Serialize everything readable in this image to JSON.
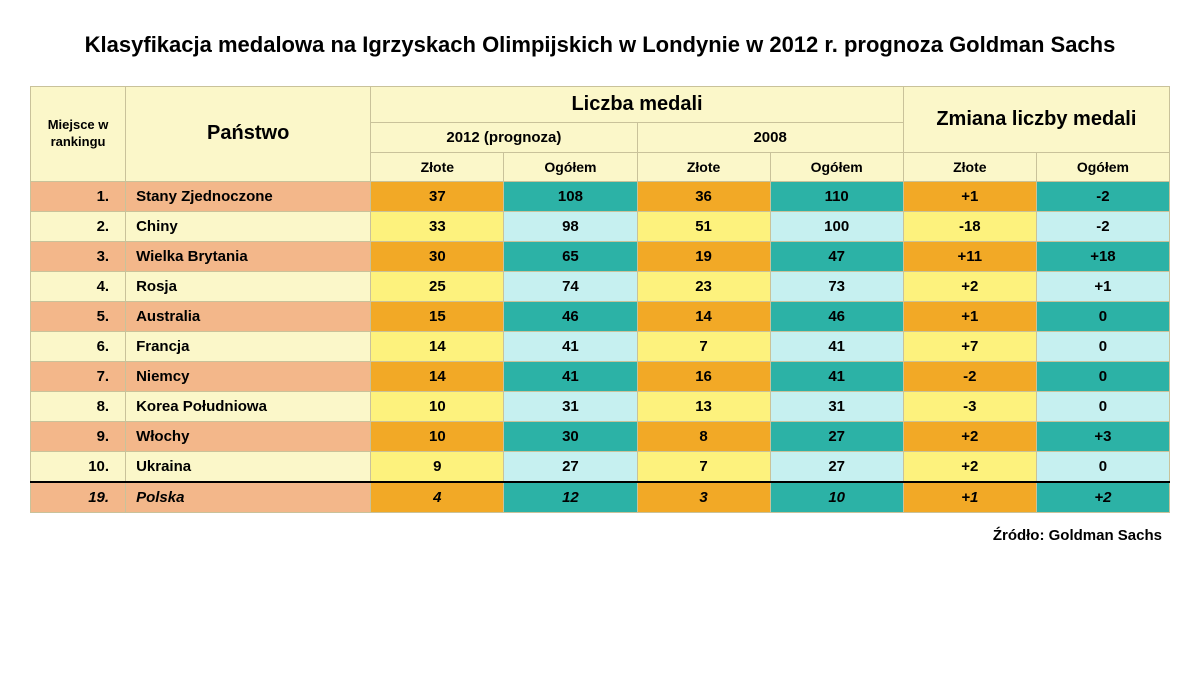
{
  "title": "Klasyfikacja medalowa na Igrzyskach Olimpijskich w Londynie w 2012 r. prognoza Goldman Sachs",
  "headers": {
    "rank": "Miejsce w rankingu",
    "country": "Państwo",
    "medal_count": "Liczba medali",
    "medal_change": "Zmiana liczby medali",
    "year_2012": "2012 (prognoza)",
    "year_2008": "2008",
    "gold": "Złote",
    "total": "Ogółem"
  },
  "rows": [
    {
      "rank": "1.",
      "country": "Stany Zjednoczone",
      "g2012": "37",
      "t2012": "108",
      "g2008": "36",
      "t2008": "110",
      "gchg": "+1",
      "tchg": "-2"
    },
    {
      "rank": "2.",
      "country": "Chiny",
      "g2012": "33",
      "t2012": "98",
      "g2008": "51",
      "t2008": "100",
      "gchg": "-18",
      "tchg": "-2"
    },
    {
      "rank": "3.",
      "country": "Wielka Brytania",
      "g2012": "30",
      "t2012": "65",
      "g2008": "19",
      "t2008": "47",
      "gchg": "+11",
      "tchg": "+18"
    },
    {
      "rank": "4.",
      "country": "Rosja",
      "g2012": "25",
      "t2012": "74",
      "g2008": "23",
      "t2008": "73",
      "gchg": "+2",
      "tchg": "+1"
    },
    {
      "rank": "5.",
      "country": "Australia",
      "g2012": "15",
      "t2012": "46",
      "g2008": "14",
      "t2008": "46",
      "gchg": "+1",
      "tchg": "0"
    },
    {
      "rank": "6.",
      "country": "Francja",
      "g2012": "14",
      "t2012": "41",
      "g2008": "7",
      "t2008": "41",
      "gchg": "+7",
      "tchg": "0"
    },
    {
      "rank": "7.",
      "country": "Niemcy",
      "g2012": "14",
      "t2012": "41",
      "g2008": "16",
      "t2008": "41",
      "gchg": "-2",
      "tchg": "0"
    },
    {
      "rank": "8.",
      "country": "Korea Południowa",
      "g2012": "10",
      "t2012": "31",
      "g2008": "13",
      "t2008": "31",
      "gchg": "-3",
      "tchg": "0"
    },
    {
      "rank": "9.",
      "country": "Włochy",
      "g2012": "10",
      "t2012": "30",
      "g2008": "8",
      "t2008": "27",
      "gchg": "+2",
      "tchg": "+3"
    },
    {
      "rank": "10.",
      "country": "Ukraina",
      "g2012": "9",
      "t2012": "27",
      "g2008": "7",
      "t2008": "27",
      "gchg": "+2",
      "tchg": "0"
    },
    {
      "rank": "19.",
      "country": "Polska",
      "g2012": "4",
      "t2012": "12",
      "g2008": "3",
      "t2008": "10",
      "gchg": "+1",
      "tchg": "+2"
    }
  ],
  "highlight_row_index": 10,
  "source": "Źródło: Goldman Sachs",
  "colors": {
    "header_bg": "#fbf7c9",
    "odd_rank_country_bg": "#f3b78a",
    "even_rank_country_bg": "#fbf7c9",
    "odd_gold_bg": "#f2a926",
    "even_gold_bg": "#fdf27d",
    "odd_total_bg": "#2cb2a6",
    "even_total_bg": "#c6f0f0",
    "border": "#c9c29a"
  }
}
